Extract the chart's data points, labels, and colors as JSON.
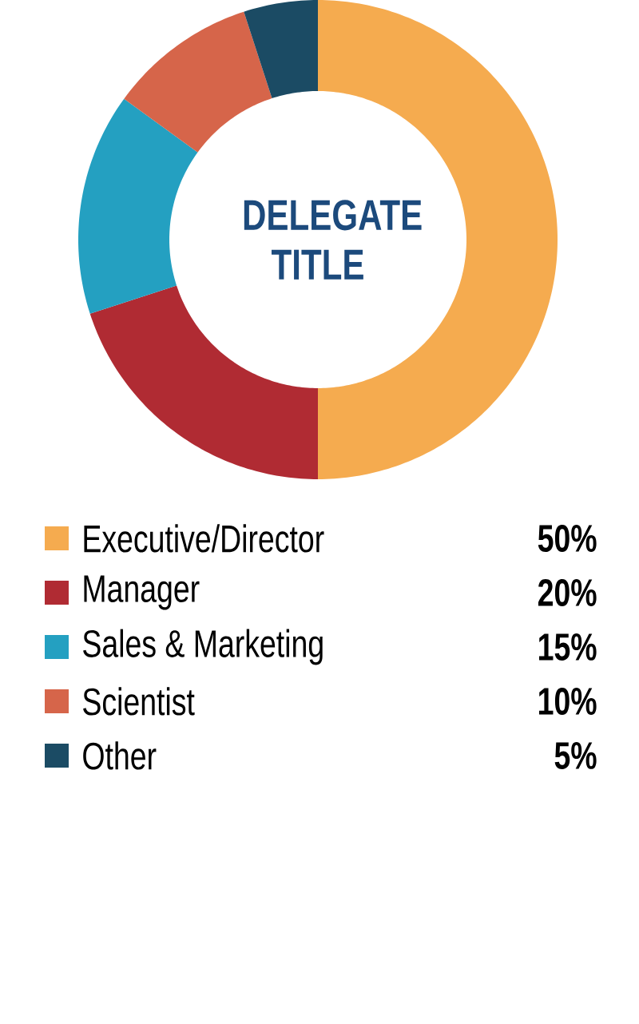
{
  "chart_data": {
    "type": "donut",
    "title": "DELEGATE TITLE",
    "categories": [
      "Executive/Director",
      "Manager",
      "Sales & Marketing",
      "Scientist",
      "Other"
    ],
    "values": [
      50,
      20,
      15,
      10,
      5
    ],
    "value_labels": [
      "50%",
      "20%",
      "15%",
      "10%",
      "5%"
    ],
    "colors": [
      "#f5ab4f",
      "#b02b33",
      "#24a0c1",
      "#d6654a",
      "#1b4b64"
    ],
    "legend": "bottom"
  }
}
